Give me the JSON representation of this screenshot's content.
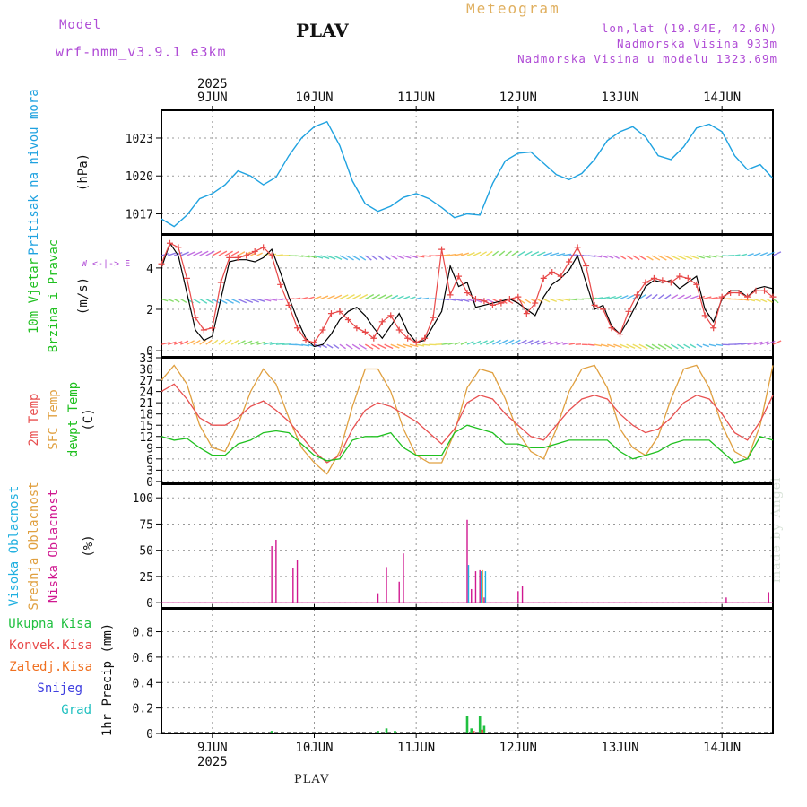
{
  "header": {
    "model_label": "Model",
    "model_name": "wrf-nmm_v3.9.1  e3km",
    "station_title": "PLAV",
    "product": "Meteogram",
    "lonlat": "lon,lat (19.94E, 42.6N)",
    "altitude": "Nadmorska Visina 933m",
    "model_altitude": "Nadmorska Visina u modelu 1323.69m"
  },
  "footer": {
    "station": "PLAV",
    "credit": "made by Angel"
  },
  "colors": {
    "pressure": "#1fa2e0",
    "wind_speed_model": "#000000",
    "wind_gust": "#e84848",
    "temp_2m": "#e85050",
    "temp_sfc": "#e0a040",
    "dewpoint": "#20c020",
    "cloud_high": "#20b0e0",
    "cloud_mid": "#e0a040",
    "cloud_low": "#d01890",
    "precip_total": "#20c040",
    "precip_conv": "#e84848",
    "precip_frz": "#f07020",
    "precip_snow": "#4040e0",
    "precip_hail": "#20c0c0",
    "grid": "#999999"
  },
  "chart_data": [
    {
      "type": "line",
      "panel": "pressure",
      "title": "Pritisak na nivou mora",
      "ylabel": "(hPa)",
      "x_days": [
        "9JUN",
        "10JUN",
        "11JUN",
        "12JUN",
        "13JUN",
        "14JUN"
      ],
      "year": "2025",
      "x_start_hours": -12,
      "x_end_hours": 132,
      "yticks": [
        1017,
        1020,
        1023
      ],
      "ylim": [
        1015.4,
        1025.2
      ],
      "x": [
        -12,
        -9,
        -6,
        -3,
        0,
        3,
        6,
        9,
        12,
        15,
        18,
        21,
        24,
        27,
        30,
        33,
        36,
        39,
        42,
        45,
        48,
        51,
        54,
        57,
        60,
        63,
        66,
        69,
        72,
        75,
        78,
        81,
        84,
        87,
        90,
        93,
        96,
        99,
        102,
        105,
        108,
        111,
        114,
        117,
        120,
        123,
        126,
        129,
        132
      ],
      "values": [
        1016.6,
        1016.0,
        1016.9,
        1018.2,
        1018.6,
        1019.3,
        1020.4,
        1020.0,
        1019.3,
        1019.9,
        1021.6,
        1023.0,
        1023.9,
        1024.3,
        1022.4,
        1019.6,
        1017.8,
        1017.2,
        1017.6,
        1018.3,
        1018.6,
        1018.2,
        1017.5,
        1016.7,
        1017.0,
        1016.9,
        1019.4,
        1021.2,
        1021.8,
        1021.9,
        1021.0,
        1020.1,
        1019.7,
        1020.2,
        1021.3,
        1022.8,
        1023.5,
        1023.9,
        1023.1,
        1021.6,
        1021.3,
        1022.3,
        1023.8,
        1024.1,
        1023.5,
        1021.6,
        1020.5,
        1020.9,
        1019.8
      ]
    },
    {
      "type": "line",
      "panel": "wind",
      "title": "10m Vjetar",
      "subtitle": "Brzina i Pravac",
      "ylabel": "(m/s)",
      "compass": "W <-|-> E",
      "yticks": [
        0,
        2,
        4
      ],
      "ylim": [
        -0.3,
        5.6
      ],
      "series": [
        {
          "name": "wind speed",
          "x": [
            -12,
            -10,
            -8,
            -6,
            -4,
            -2,
            0,
            2,
            4,
            6,
            8,
            10,
            12,
            14,
            16,
            18,
            20,
            22,
            24,
            26,
            28,
            30,
            32,
            34,
            36,
            38,
            40,
            42,
            44,
            46,
            48,
            50,
            52,
            54,
            56,
            58,
            60,
            62,
            64,
            66,
            68,
            70,
            72,
            74,
            76,
            78,
            80,
            82,
            84,
            86,
            88,
            90,
            92,
            94,
            96,
            98,
            100,
            102,
            104,
            106,
            108,
            110,
            112,
            114,
            116,
            118,
            120,
            122,
            124,
            126,
            128,
            130,
            132
          ],
          "values": [
            4.0,
            5.2,
            4.6,
            2.8,
            1.0,
            0.5,
            0.7,
            2.5,
            4.3,
            4.4,
            4.4,
            4.3,
            4.5,
            4.9,
            3.8,
            2.6,
            1.5,
            0.6,
            0.2,
            0.3,
            0.8,
            1.5,
            1.9,
            2.1,
            1.7,
            1.1,
            0.6,
            1.2,
            1.8,
            0.9,
            0.4,
            0.5,
            1.2,
            1.9,
            4.1,
            3.1,
            3.3,
            2.1,
            2.2,
            2.3,
            2.4,
            2.5,
            2.3,
            2.0,
            1.7,
            2.6,
            3.2,
            3.5,
            3.9,
            4.6,
            3.3,
            2.0,
            2.2,
            1.2,
            0.8,
            1.5,
            2.3,
            3.1,
            3.4,
            3.3,
            3.4,
            3.0,
            3.3,
            3.6,
            2.0,
            1.4,
            2.5,
            2.9,
            2.9,
            2.6,
            3.0,
            3.1,
            3.0
          ]
        },
        {
          "name": "gust",
          "x": [
            -12,
            -10,
            -8,
            -6,
            -4,
            -2,
            0,
            2,
            4,
            6,
            8,
            10,
            12,
            14,
            16,
            18,
            20,
            22,
            24,
            26,
            28,
            30,
            32,
            34,
            36,
            38,
            40,
            42,
            44,
            46,
            48,
            50,
            52,
            54,
            56,
            58,
            60,
            62,
            64,
            66,
            68,
            70,
            72,
            74,
            76,
            78,
            80,
            82,
            84,
            86,
            88,
            90,
            92,
            94,
            96,
            98,
            100,
            102,
            104,
            106,
            108,
            110,
            112,
            114,
            116,
            118,
            120,
            122,
            124,
            126,
            128,
            130,
            132
          ],
          "values": [
            4.2,
            5.2,
            5.0,
            3.5,
            1.6,
            1.0,
            1.1,
            3.3,
            4.5,
            4.5,
            4.6,
            4.8,
            5.0,
            4.6,
            3.2,
            2.2,
            1.1,
            0.5,
            0.4,
            1.0,
            1.8,
            1.9,
            1.5,
            1.1,
            0.9,
            0.6,
            1.4,
            1.7,
            1.0,
            0.6,
            0.4,
            0.6,
            1.6,
            4.9,
            2.7,
            3.6,
            2.8,
            2.5,
            2.4,
            2.2,
            2.3,
            2.5,
            2.6,
            1.8,
            2.3,
            3.5,
            3.8,
            3.6,
            4.3,
            5.0,
            4.1,
            2.2,
            2.0,
            1.1,
            0.8,
            1.9,
            2.7,
            3.3,
            3.5,
            3.4,
            3.3,
            3.6,
            3.5,
            3.2,
            1.7,
            1.1,
            2.6,
            2.8,
            2.8,
            2.6,
            2.9,
            2.9,
            2.6
          ]
        }
      ]
    },
    {
      "type": "line",
      "panel": "temperature",
      "titles": [
        "2m Temp",
        "SFC Temp",
        "dewpt Temp"
      ],
      "ylabel": "(C)",
      "yticks": [
        0,
        3,
        6,
        9,
        12,
        15,
        18,
        21,
        24,
        27,
        30,
        33
      ],
      "ylim": [
        -0.5,
        33
      ],
      "series": [
        {
          "name": "2m Temp",
          "x": [
            -12,
            -9,
            -6,
            -3,
            0,
            3,
            6,
            9,
            12,
            15,
            18,
            21,
            24,
            27,
            30,
            33,
            36,
            39,
            42,
            45,
            48,
            51,
            54,
            57,
            60,
            63,
            66,
            69,
            72,
            75,
            78,
            81,
            84,
            87,
            90,
            93,
            96,
            99,
            102,
            105,
            108,
            111,
            114,
            117,
            120,
            123,
            126,
            129,
            132
          ],
          "values": [
            24,
            26,
            22,
            17,
            15,
            15,
            17,
            20,
            21.5,
            19,
            16,
            12,
            8,
            5,
            7,
            14,
            19,
            21,
            20,
            18,
            16,
            13,
            10,
            14,
            21,
            23,
            22,
            18,
            15,
            12,
            11,
            15,
            19,
            22,
            23,
            22,
            18,
            15,
            13,
            14,
            17,
            21,
            23,
            22,
            18,
            13,
            11,
            16,
            23
          ]
        },
        {
          "name": "SFC Temp",
          "x": [
            -12,
            -9,
            -6,
            -3,
            0,
            3,
            6,
            9,
            12,
            15,
            18,
            21,
            24,
            27,
            30,
            33,
            36,
            39,
            42,
            45,
            48,
            51,
            54,
            57,
            60,
            63,
            66,
            69,
            72,
            75,
            78,
            81,
            84,
            87,
            90,
            93,
            96,
            99,
            102,
            105,
            108,
            111,
            114,
            117,
            120,
            123,
            126,
            129,
            132
          ],
          "values": [
            27,
            31,
            26,
            15,
            9,
            8,
            15,
            24,
            30,
            26,
            17,
            9,
            5,
            2,
            8,
            20,
            30,
            30,
            24,
            14,
            7,
            5,
            5,
            13,
            25,
            30,
            29,
            22,
            13,
            8,
            6,
            14,
            24,
            30,
            31,
            25,
            14,
            9,
            7,
            12,
            22,
            30,
            31,
            25,
            15,
            8,
            6,
            15,
            31
          ]
        },
        {
          "name": "dewpt Temp",
          "x": [
            -12,
            -9,
            -6,
            -3,
            0,
            3,
            6,
            9,
            12,
            15,
            18,
            21,
            24,
            27,
            30,
            33,
            36,
            39,
            42,
            45,
            48,
            51,
            54,
            57,
            60,
            63,
            66,
            69,
            72,
            75,
            78,
            81,
            84,
            87,
            90,
            93,
            96,
            99,
            102,
            105,
            108,
            111,
            114,
            117,
            120,
            123,
            126,
            129,
            132
          ],
          "values": [
            12,
            11,
            11.5,
            9,
            7,
            7,
            10,
            11,
            13,
            13.5,
            13,
            10,
            7,
            5.5,
            6,
            11,
            12,
            12,
            13,
            9,
            7,
            7,
            7,
            13,
            15,
            14,
            13,
            10,
            10,
            9,
            9,
            10,
            11,
            11,
            11,
            11,
            8,
            6,
            7,
            8,
            10,
            11,
            11,
            11,
            8,
            5,
            6,
            12,
            11
          ]
        }
      ]
    },
    {
      "type": "bar",
      "panel": "clouds",
      "titles": [
        "Visoka Oblacnost",
        "Srednja Oblacnost",
        "Niska Oblacnost"
      ],
      "ylabel": "(%)",
      "yticks": [
        0,
        25,
        50,
        75,
        100
      ],
      "ylim": [
        -5,
        113
      ],
      "series": [
        {
          "name": "Niska Oblacnost",
          "x": [
            14,
            15,
            19,
            20,
            39,
            41,
            44,
            45,
            60,
            61,
            62,
            63,
            64,
            72,
            73,
            121,
            131
          ],
          "values": [
            54,
            60,
            33,
            41,
            9,
            34,
            20,
            47,
            79,
            13,
            30,
            31,
            5,
            11,
            16,
            5,
            10
          ]
        },
        {
          "name": "Visoka Oblacnost",
          "x": [
            60,
            63,
            64
          ],
          "values": [
            36,
            30,
            30
          ]
        },
        {
          "name": "Srednja Oblacnost",
          "x": [
            63
          ],
          "values": [
            31
          ]
        }
      ]
    },
    {
      "type": "bar",
      "panel": "precip",
      "titles": [
        "Ukupna Kisa",
        "Konvek.Kisa",
        "Zaledj.Kisa",
        "Snijeg",
        "Grad"
      ],
      "ylabel": "1hr Precip (mm)",
      "yticks": [
        0,
        0.2,
        0.4,
        0.6,
        0.8
      ],
      "ylim": [
        0,
        0.98
      ],
      "series": [
        {
          "name": "Ukupna Kisa",
          "x": [
            14,
            39,
            41,
            43,
            60,
            61,
            63,
            64
          ],
          "values": [
            0.02,
            0.02,
            0.04,
            0.02,
            0.14,
            0.04,
            0.14,
            0.06
          ]
        },
        {
          "name": "Konvek.Kisa",
          "x": [
            61,
            63
          ],
          "values": [
            0.02,
            0.03
          ]
        }
      ]
    }
  ]
}
